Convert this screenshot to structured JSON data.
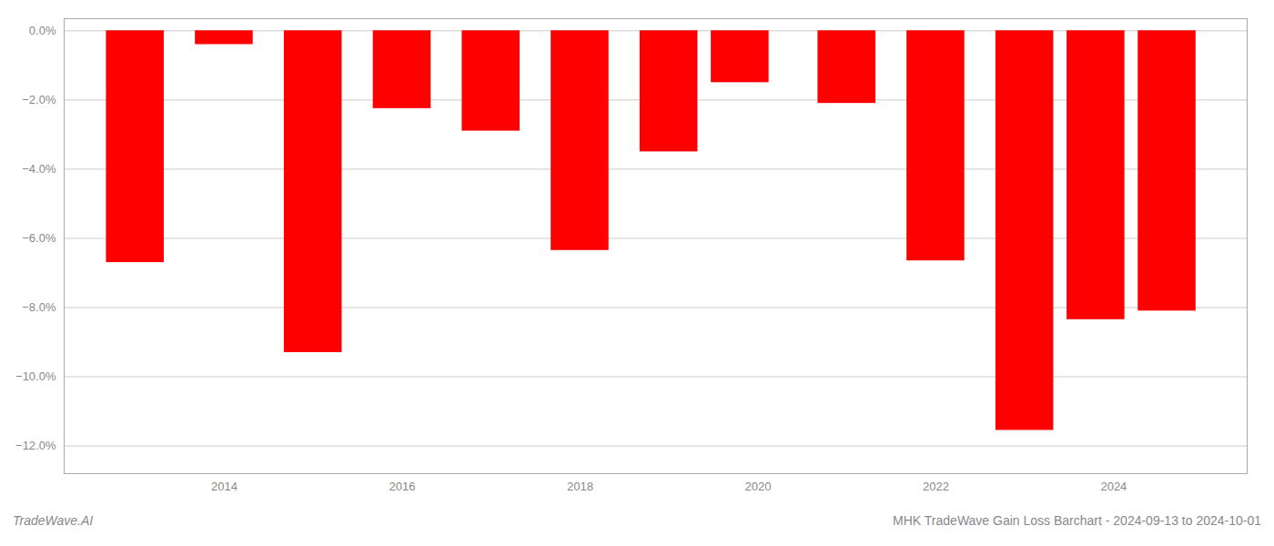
{
  "chart_data": {
    "type": "bar",
    "title": "MHK TradeWave Gain Loss Barchart - 2024-09-13 to 2024-10-01",
    "annotations": [
      "TradeWave.AI"
    ],
    "x": [
      2013,
      2014,
      2015,
      2016,
      2017,
      2018,
      2019,
      2019.8,
      2021,
      2022,
      2023,
      2023.8,
      2024.6
    ],
    "values": [
      -6.7,
      -0.4,
      -9.3,
      -2.25,
      -2.9,
      -6.35,
      -3.5,
      -1.5,
      -2.1,
      -6.65,
      -11.55,
      -8.35,
      -8.1
    ],
    "color": "#ff0000",
    "xlim": [
      2012.2,
      2025.5
    ],
    "xticks": [
      2014,
      2016,
      2018,
      2020,
      2022,
      2024
    ],
    "ylim": [
      -12.8,
      0.35
    ],
    "yticks": [
      {
        "value": 0.0,
        "label": "0.0%"
      },
      {
        "value": -2.0,
        "label": "−2.0%"
      },
      {
        "value": -4.0,
        "label": "−4.0%"
      },
      {
        "value": -6.0,
        "label": "−6.0%"
      },
      {
        "value": -8.0,
        "label": "−8.0%"
      },
      {
        "value": -10.0,
        "label": "−10.0%"
      },
      {
        "value": -12.0,
        "label": "−12.0%"
      }
    ],
    "grid": true
  }
}
